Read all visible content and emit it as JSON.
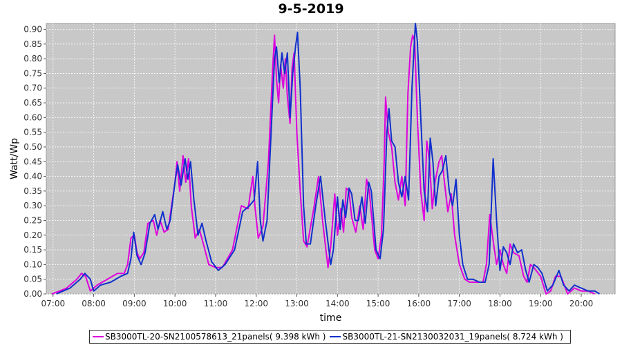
{
  "chart_data": {
    "type": "line",
    "title": "9-5-2019",
    "xlabel": "time",
    "ylabel": "Watt/Wp",
    "xlim": [
      "06:50",
      "20:50"
    ],
    "ylim": [
      0,
      0.92
    ],
    "xticks": [
      "07:00",
      "08:00",
      "09:00",
      "10:00",
      "11:00",
      "12:00",
      "13:00",
      "14:00",
      "15:00",
      "16:00",
      "17:00",
      "18:00",
      "19:00",
      "20:00"
    ],
    "yticks": [
      "0.00",
      "0.05",
      "0.10",
      "0.15",
      "0.20",
      "0.25",
      "0.30",
      "0.35",
      "0.40",
      "0.45",
      "0.50",
      "0.55",
      "0.60",
      "0.65",
      "0.70",
      "0.75",
      "0.80",
      "0.85",
      "0.90"
    ],
    "grid": true,
    "legend_position": "bottom",
    "series": [
      {
        "name": "SB3000TL-20-SN2100578613_21panels( 9.398 kWh )",
        "color": "#dd00dd",
        "points": [
          [
            "06:58",
            0.0
          ],
          [
            "07:10",
            0.01
          ],
          [
            "07:20",
            0.02
          ],
          [
            "07:35",
            0.05
          ],
          [
            "07:42",
            0.07
          ],
          [
            "07:48",
            0.06
          ],
          [
            "07:55",
            0.01
          ],
          [
            "08:05",
            0.03
          ],
          [
            "08:20",
            0.05
          ],
          [
            "08:35",
            0.07
          ],
          [
            "08:45",
            0.07
          ],
          [
            "08:50",
            0.1
          ],
          [
            "08:55",
            0.19
          ],
          [
            "09:00",
            0.2
          ],
          [
            "09:04",
            0.14
          ],
          [
            "09:08",
            0.12
          ],
          [
            "09:14",
            0.14
          ],
          [
            "09:20",
            0.24
          ],
          [
            "09:28",
            0.25
          ],
          [
            "09:33",
            0.2
          ],
          [
            "09:38",
            0.25
          ],
          [
            "09:44",
            0.21
          ],
          [
            "09:50",
            0.22
          ],
          [
            "09:55",
            0.3
          ],
          [
            "10:00",
            0.38
          ],
          [
            "10:03",
            0.45
          ],
          [
            "10:07",
            0.35
          ],
          [
            "10:12",
            0.47
          ],
          [
            "10:16",
            0.38
          ],
          [
            "10:20",
            0.46
          ],
          [
            "10:24",
            0.3
          ],
          [
            "10:30",
            0.19
          ],
          [
            "10:36",
            0.22
          ],
          [
            "10:42",
            0.17
          ],
          [
            "10:50",
            0.1
          ],
          [
            "11:00",
            0.09
          ],
          [
            "11:10",
            0.09
          ],
          [
            "11:25",
            0.15
          ],
          [
            "11:38",
            0.3
          ],
          [
            "11:48",
            0.29
          ],
          [
            "11:55",
            0.4
          ],
          [
            "11:58",
            0.3
          ],
          [
            "12:03",
            0.19
          ],
          [
            "12:10",
            0.23
          ],
          [
            "12:18",
            0.45
          ],
          [
            "12:24",
            0.75
          ],
          [
            "12:27",
            0.88
          ],
          [
            "12:30",
            0.73
          ],
          [
            "12:33",
            0.65
          ],
          [
            "12:36",
            0.78
          ],
          [
            "12:40",
            0.7
          ],
          [
            "12:43",
            0.8
          ],
          [
            "12:46",
            0.67
          ],
          [
            "12:50",
            0.58
          ],
          [
            "12:53",
            0.77
          ],
          [
            "12:56",
            0.82
          ],
          [
            "13:00",
            0.55
          ],
          [
            "13:05",
            0.35
          ],
          [
            "13:10",
            0.18
          ],
          [
            "13:15",
            0.16
          ],
          [
            "13:25",
            0.29
          ],
          [
            "13:32",
            0.4
          ],
          [
            "13:38",
            0.25
          ],
          [
            "13:46",
            0.09
          ],
          [
            "13:50",
            0.16
          ],
          [
            "13:56",
            0.34
          ],
          [
            "14:00",
            0.2
          ],
          [
            "14:05",
            0.29
          ],
          [
            "14:09",
            0.21
          ],
          [
            "14:13",
            0.36
          ],
          [
            "14:17",
            0.35
          ],
          [
            "14:21",
            0.26
          ],
          [
            "14:27",
            0.21
          ],
          [
            "14:33",
            0.3
          ],
          [
            "14:38",
            0.22
          ],
          [
            "14:43",
            0.39
          ],
          [
            "14:47",
            0.35
          ],
          [
            "14:55",
            0.15
          ],
          [
            "15:00",
            0.12
          ],
          [
            "15:05",
            0.2
          ],
          [
            "15:09",
            0.45
          ],
          [
            "15:11",
            0.67
          ],
          [
            "15:15",
            0.55
          ],
          [
            "15:20",
            0.5
          ],
          [
            "15:25",
            0.38
          ],
          [
            "15:30",
            0.32
          ],
          [
            "15:35",
            0.4
          ],
          [
            "15:40",
            0.3
          ],
          [
            "15:44",
            0.68
          ],
          [
            "15:48",
            0.84
          ],
          [
            "15:51",
            0.88
          ],
          [
            "15:54",
            0.86
          ],
          [
            "15:58",
            0.6
          ],
          [
            "16:03",
            0.35
          ],
          [
            "16:08",
            0.25
          ],
          [
            "16:12",
            0.52
          ],
          [
            "16:16",
            0.45
          ],
          [
            "16:20",
            0.29
          ],
          [
            "16:24",
            0.38
          ],
          [
            "16:30",
            0.45
          ],
          [
            "16:34",
            0.47
          ],
          [
            "16:38",
            0.38
          ],
          [
            "16:43",
            0.28
          ],
          [
            "16:48",
            0.34
          ],
          [
            "16:53",
            0.2
          ],
          [
            "17:00",
            0.1
          ],
          [
            "17:08",
            0.05
          ],
          [
            "17:15",
            0.04
          ],
          [
            "17:25",
            0.04
          ],
          [
            "17:35",
            0.04
          ],
          [
            "17:40",
            0.1
          ],
          [
            "17:45",
            0.27
          ],
          [
            "17:50",
            0.18
          ],
          [
            "17:55",
            0.1
          ],
          [
            "18:00",
            0.15
          ],
          [
            "18:05",
            0.1
          ],
          [
            "18:10",
            0.07
          ],
          [
            "18:15",
            0.17
          ],
          [
            "18:20",
            0.14
          ],
          [
            "18:28",
            0.13
          ],
          [
            "18:35",
            0.06
          ],
          [
            "18:40",
            0.04
          ],
          [
            "18:45",
            0.1
          ],
          [
            "18:50",
            0.09
          ],
          [
            "19:00",
            0.06
          ],
          [
            "19:08",
            0.0
          ],
          [
            "19:15",
            0.01
          ],
          [
            "19:22",
            0.06
          ],
          [
            "19:30",
            0.06
          ],
          [
            "19:40",
            0.0
          ],
          [
            "19:50",
            0.02
          ],
          [
            "20:00",
            0.01
          ],
          [
            "20:10",
            0.01
          ],
          [
            "20:20",
            0.0
          ]
        ]
      },
      {
        "name": "SB3000TL-21-SN2130032031_19panels( 8.724 kWh )",
        "color": "#1030cc",
        "points": [
          [
            "07:05",
            0.0
          ],
          [
            "07:15",
            0.01
          ],
          [
            "07:25",
            0.02
          ],
          [
            "07:40",
            0.05
          ],
          [
            "07:47",
            0.07
          ],
          [
            "07:55",
            0.05
          ],
          [
            "08:00",
            0.01
          ],
          [
            "08:10",
            0.03
          ],
          [
            "08:25",
            0.04
          ],
          [
            "08:40",
            0.06
          ],
          [
            "08:50",
            0.07
          ],
          [
            "08:55",
            0.12
          ],
          [
            "08:59",
            0.21
          ],
          [
            "09:04",
            0.13
          ],
          [
            "09:10",
            0.1
          ],
          [
            "09:16",
            0.14
          ],
          [
            "09:23",
            0.24
          ],
          [
            "09:30",
            0.27
          ],
          [
            "09:35",
            0.22
          ],
          [
            "09:42",
            0.28
          ],
          [
            "09:48",
            0.22
          ],
          [
            "09:53",
            0.25
          ],
          [
            "10:00",
            0.38
          ],
          [
            "10:04",
            0.44
          ],
          [
            "10:09",
            0.37
          ],
          [
            "10:15",
            0.46
          ],
          [
            "10:19",
            0.39
          ],
          [
            "10:23",
            0.45
          ],
          [
            "10:28",
            0.32
          ],
          [
            "10:34",
            0.2
          ],
          [
            "10:40",
            0.24
          ],
          [
            "10:46",
            0.18
          ],
          [
            "10:54",
            0.11
          ],
          [
            "11:04",
            0.08
          ],
          [
            "11:14",
            0.1
          ],
          [
            "11:28",
            0.15
          ],
          [
            "11:40",
            0.28
          ],
          [
            "11:50",
            0.3
          ],
          [
            "11:57",
            0.32
          ],
          [
            "12:02",
            0.45
          ],
          [
            "12:06",
            0.25
          ],
          [
            "12:10",
            0.18
          ],
          [
            "12:16",
            0.25
          ],
          [
            "12:22",
            0.55
          ],
          [
            "12:27",
            0.8
          ],
          [
            "12:30",
            0.84
          ],
          [
            "12:34",
            0.72
          ],
          [
            "12:38",
            0.82
          ],
          [
            "12:42",
            0.75
          ],
          [
            "12:46",
            0.82
          ],
          [
            "12:50",
            0.6
          ],
          [
            "12:54",
            0.75
          ],
          [
            "12:58",
            0.84
          ],
          [
            "13:01",
            0.89
          ],
          [
            "13:05",
            0.7
          ],
          [
            "13:10",
            0.3
          ],
          [
            "13:14",
            0.17
          ],
          [
            "13:20",
            0.17
          ],
          [
            "13:28",
            0.3
          ],
          [
            "13:35",
            0.4
          ],
          [
            "13:42",
            0.25
          ],
          [
            "13:50",
            0.1
          ],
          [
            "13:54",
            0.15
          ],
          [
            "14:00",
            0.33
          ],
          [
            "14:04",
            0.22
          ],
          [
            "14:08",
            0.32
          ],
          [
            "14:12",
            0.26
          ],
          [
            "14:17",
            0.36
          ],
          [
            "14:21",
            0.34
          ],
          [
            "14:26",
            0.25
          ],
          [
            "14:31",
            0.25
          ],
          [
            "14:36",
            0.33
          ],
          [
            "14:41",
            0.24
          ],
          [
            "14:46",
            0.38
          ],
          [
            "14:50",
            0.35
          ],
          [
            "14:57",
            0.15
          ],
          [
            "15:03",
            0.12
          ],
          [
            "15:08",
            0.22
          ],
          [
            "15:13",
            0.55
          ],
          [
            "15:16",
            0.63
          ],
          [
            "15:20",
            0.52
          ],
          [
            "15:25",
            0.5
          ],
          [
            "15:30",
            0.38
          ],
          [
            "15:35",
            0.33
          ],
          [
            "15:40",
            0.4
          ],
          [
            "15:45",
            0.32
          ],
          [
            "15:50",
            0.7
          ],
          [
            "15:55",
            0.92
          ],
          [
            "15:58",
            0.86
          ],
          [
            "16:03",
            0.6
          ],
          [
            "16:08",
            0.35
          ],
          [
            "16:13",
            0.28
          ],
          [
            "16:17",
            0.53
          ],
          [
            "16:21",
            0.45
          ],
          [
            "16:25",
            0.3
          ],
          [
            "16:30",
            0.4
          ],
          [
            "16:35",
            0.42
          ],
          [
            "16:40",
            0.47
          ],
          [
            "16:45",
            0.35
          ],
          [
            "16:50",
            0.3
          ],
          [
            "16:55",
            0.39
          ],
          [
            "17:00",
            0.2
          ],
          [
            "17:05",
            0.1
          ],
          [
            "17:12",
            0.05
          ],
          [
            "17:20",
            0.05
          ],
          [
            "17:30",
            0.04
          ],
          [
            "17:38",
            0.04
          ],
          [
            "17:44",
            0.1
          ],
          [
            "17:50",
            0.46
          ],
          [
            "17:55",
            0.25
          ],
          [
            "18:00",
            0.08
          ],
          [
            "18:05",
            0.16
          ],
          [
            "18:10",
            0.14
          ],
          [
            "18:15",
            0.1
          ],
          [
            "18:20",
            0.17
          ],
          [
            "18:26",
            0.14
          ],
          [
            "18:32",
            0.15
          ],
          [
            "18:38",
            0.08
          ],
          [
            "18:43",
            0.04
          ],
          [
            "18:50",
            0.1
          ],
          [
            "18:56",
            0.09
          ],
          [
            "19:02",
            0.07
          ],
          [
            "19:10",
            0.01
          ],
          [
            "19:18",
            0.03
          ],
          [
            "19:27",
            0.08
          ],
          [
            "19:34",
            0.03
          ],
          [
            "19:42",
            0.01
          ],
          [
            "19:50",
            0.03
          ],
          [
            "20:00",
            0.02
          ],
          [
            "20:10",
            0.01
          ],
          [
            "20:20",
            0.01
          ],
          [
            "20:27",
            0.0
          ]
        ]
      }
    ]
  }
}
